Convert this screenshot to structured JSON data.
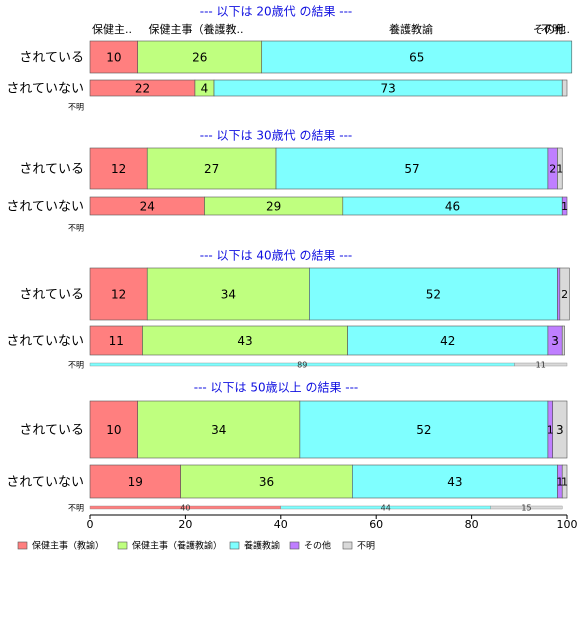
{
  "chart_data": {
    "type": "stacked-bar-horizontal",
    "xlim": [
      0,
      100
    ],
    "x_ticks": [
      "0",
      "20",
      "40",
      "60",
      "80",
      "100"
    ],
    "categories": [
      "保健主事（教諭）",
      "保健主事（養護教諭）",
      "養護教諭",
      "その他",
      "不明"
    ],
    "colors": [
      "#FF7F7F",
      "#BFFF7F",
      "#7FFFFF",
      "#BF7FFF",
      "#D9D9D9"
    ],
    "top_header_labels": [
      "保健主..",
      "保健主事（養護教..",
      "養護教諭",
      "その他",
      "不明.."
    ],
    "panels": [
      {
        "title": "--- 以下は 20歳代 の結果 ---",
        "rows": [
          {
            "label": "されている",
            "values": [
              10,
              26,
              65,
              0,
              0
            ],
            "value_labels": [
              "10",
              "26",
              "65",
              "",
              ""
            ]
          },
          {
            "label": "されていない",
            "values": [
              22,
              4,
              73,
              0,
              1
            ],
            "value_labels": [
              "22",
              "4",
              "73",
              "",
              ""
            ]
          }
        ],
        "unknown_row": {
          "label": "不明",
          "values": [],
          "value_labels": []
        }
      },
      {
        "title": "--- 以下は 30歳代 の結果 ---",
        "rows": [
          {
            "label": "されている",
            "values": [
              12,
              27,
              57,
              2,
              1
            ],
            "value_labels": [
              "12",
              "27",
              "57",
              "2",
              "1"
            ]
          },
          {
            "label": "されていない",
            "values": [
              24,
              29,
              46,
              1,
              0
            ],
            "value_labels": [
              "24",
              "29",
              "46",
              "1",
              ""
            ]
          }
        ],
        "unknown_row": {
          "label": "不明",
          "values": [],
          "value_labels": []
        }
      },
      {
        "title": "--- 以下は 40歳代 の結果 ---",
        "rows": [
          {
            "label": "されている",
            "values": [
              12,
              34,
              52,
              0.5,
              2
            ],
            "value_labels": [
              "12",
              "34",
              "52",
              "",
              "2"
            ]
          },
          {
            "label": "されていない",
            "values": [
              11,
              43,
              42,
              3,
              0.5
            ],
            "value_labels": [
              "11",
              "43",
              "42",
              "3",
              ""
            ]
          }
        ],
        "unknown_row": {
          "label": "不明",
          "values": [
            0,
            0,
            89,
            0,
            11
          ],
          "value_labels": [
            "",
            "",
            "89",
            "",
            "11"
          ]
        }
      },
      {
        "title": "--- 以下は 50歳以上 の結果 ---",
        "rows": [
          {
            "label": "されている",
            "values": [
              10,
              34,
              52,
              1,
              3
            ],
            "value_labels": [
              "10",
              "34",
              "52",
              "1",
              "3"
            ]
          },
          {
            "label": "されていない",
            "values": [
              19,
              36,
              43,
              1,
              1
            ],
            "value_labels": [
              "19",
              "36",
              "43",
              "1",
              "1"
            ]
          }
        ],
        "unknown_row": {
          "label": "不明",
          "values": [
            40,
            0,
            44,
            0,
            15
          ],
          "value_labels": [
            "40",
            "",
            "44",
            "",
            "15"
          ]
        }
      }
    ],
    "legend": [
      "保健主事（教諭）",
      "保健主事（養護教諭）",
      "養護教諭",
      "その他",
      "不明"
    ],
    "grid": false,
    "legend_position": "bottom-left"
  }
}
